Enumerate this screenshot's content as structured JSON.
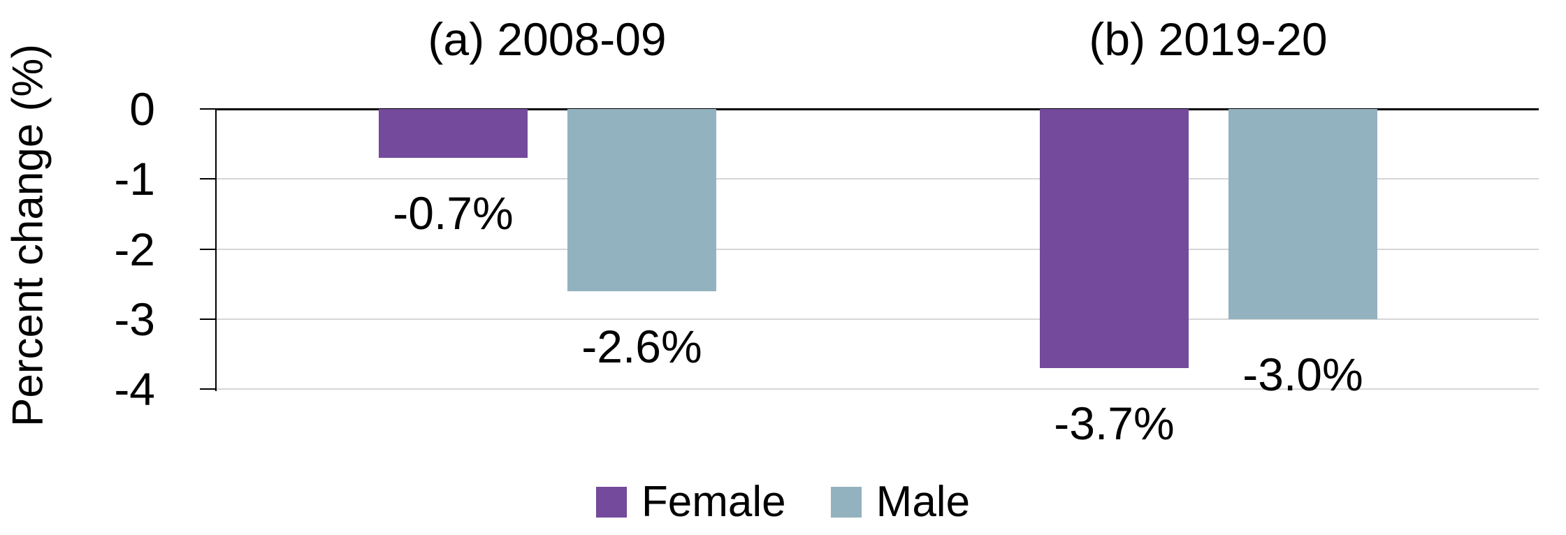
{
  "chart_data": {
    "type": "bar",
    "title": "",
    "ylabel": "Percent change (%)",
    "ylim": [
      0,
      -4
    ],
    "yticks": [
      0,
      -1,
      -2,
      -3,
      -4
    ],
    "ytick_labels": [
      "0",
      "-1",
      "-2",
      "-3",
      "-4"
    ],
    "grid": true,
    "legend_position": "bottom-center",
    "panels": [
      {
        "id": "a",
        "title": "(a) 2008-09",
        "categories": [
          "Female",
          "Male"
        ],
        "values": [
          -0.7,
          -2.6
        ],
        "data_labels": [
          "-0.7%",
          "-2.6%"
        ]
      },
      {
        "id": "b",
        "title": "(b) 2019-20",
        "categories": [
          "Female",
          "Male"
        ],
        "values": [
          -3.7,
          -3.0
        ],
        "data_labels": [
          "-3.7%",
          "-3.0%"
        ]
      }
    ],
    "series": [
      {
        "name": "Female",
        "color": "#734A9C"
      },
      {
        "name": "Male",
        "color": "#93B2BF"
      }
    ],
    "colors": {
      "gridline": "#D6D6D6",
      "zero_line": "#000000",
      "axis": "#000000",
      "text": "#000000",
      "background": "#FFFFFF"
    }
  }
}
